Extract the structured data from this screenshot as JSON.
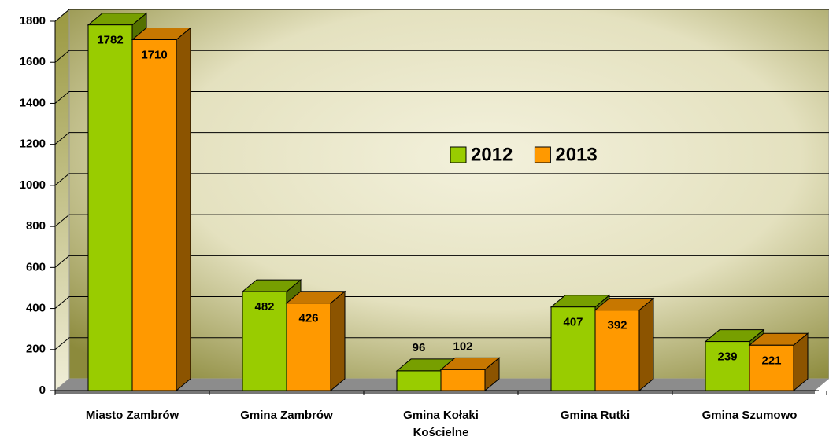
{
  "chart_data": {
    "type": "bar3d",
    "categories": [
      "Miasto Zambrów",
      "Gmina Zambrów",
      "Gmina Kołaki Kościelne",
      "Gmina Rutki",
      "Gmina Szumowo"
    ],
    "series": [
      {
        "name": "2012",
        "color": "#99cc00",
        "values": [
          1782,
          482,
          96,
          407,
          239
        ]
      },
      {
        "name": "2013",
        "color": "#ff9900",
        "values": [
          1710,
          426,
          102,
          392,
          221
        ]
      }
    ],
    "ylim": [
      0,
      1800
    ],
    "yticks": [
      0,
      200,
      400,
      600,
      800,
      1000,
      1200,
      1400,
      1600,
      1800
    ],
    "grid": true,
    "legend": "center"
  }
}
